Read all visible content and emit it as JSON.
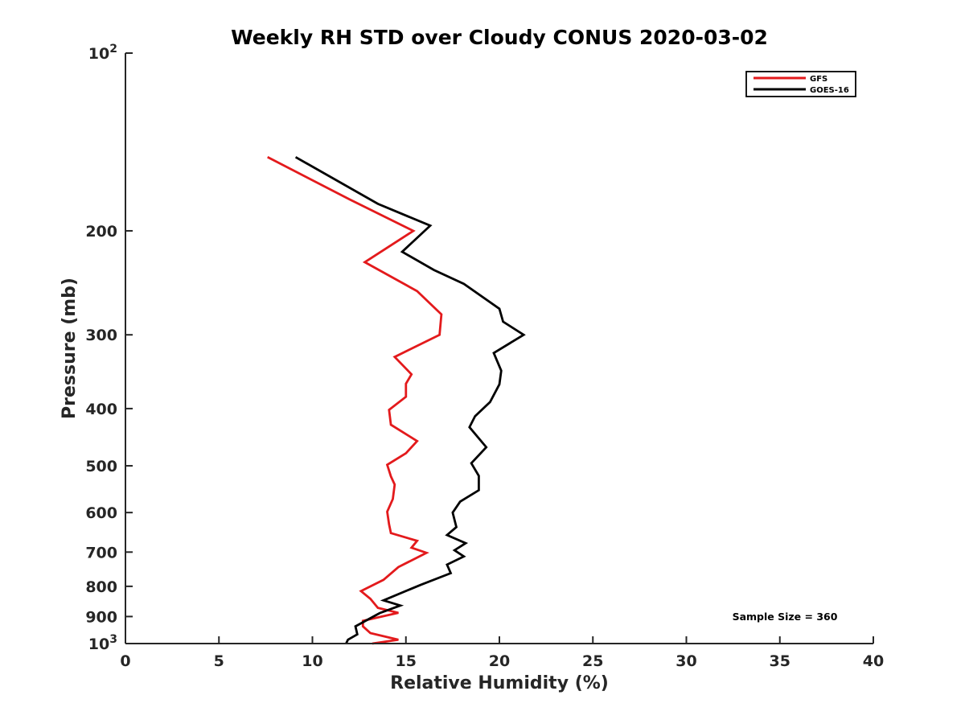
{
  "chart_data": {
    "type": "line",
    "title": "Weekly RH STD over Cloudy CONUS 2020-03-02",
    "xlabel": "Relative Humidity (%)",
    "ylabel": "Pressure (mb)",
    "xlim": [
      0,
      40
    ],
    "ylim": [
      100,
      1000
    ],
    "y_scale": "log",
    "y_reversed": true,
    "grid": false,
    "legend_position": "top-right",
    "x_ticks": [
      0,
      5,
      10,
      15,
      20,
      25,
      30,
      35,
      40
    ],
    "y_ticks": [
      {
        "value": 100,
        "base": "10",
        "exp": "2"
      },
      {
        "value": 200,
        "label": "200"
      },
      {
        "value": 300,
        "label": "300"
      },
      {
        "value": 400,
        "label": "400"
      },
      {
        "value": 500,
        "label": "500"
      },
      {
        "value": 600,
        "label": "600"
      },
      {
        "value": 700,
        "label": "700"
      },
      {
        "value": 800,
        "label": "800"
      },
      {
        "value": 900,
        "label": "900"
      },
      {
        "value": 1000,
        "base": "10",
        "exp": "3"
      }
    ],
    "annotation": "Sample Size = 360",
    "series": [
      {
        "name": "GFS",
        "color": "#e31a1c",
        "points": [
          {
            "x": 7.6,
            "y": 150
          },
          {
            "x": 12.0,
            "y": 177
          },
          {
            "x": 15.4,
            "y": 200
          },
          {
            "x": 12.8,
            "y": 226
          },
          {
            "x": 15.6,
            "y": 253
          },
          {
            "x": 16.9,
            "y": 277
          },
          {
            "x": 16.8,
            "y": 300
          },
          {
            "x": 14.4,
            "y": 327
          },
          {
            "x": 15.3,
            "y": 350
          },
          {
            "x": 15.0,
            "y": 363
          },
          {
            "x": 15.0,
            "y": 382
          },
          {
            "x": 14.1,
            "y": 402
          },
          {
            "x": 14.2,
            "y": 426
          },
          {
            "x": 15.6,
            "y": 454
          },
          {
            "x": 15.0,
            "y": 476
          },
          {
            "x": 14.0,
            "y": 498
          },
          {
            "x": 14.2,
            "y": 521
          },
          {
            "x": 14.4,
            "y": 538
          },
          {
            "x": 14.3,
            "y": 569
          },
          {
            "x": 14.0,
            "y": 598
          },
          {
            "x": 14.1,
            "y": 628
          },
          {
            "x": 14.2,
            "y": 650
          },
          {
            "x": 15.6,
            "y": 670
          },
          {
            "x": 15.3,
            "y": 688
          },
          {
            "x": 16.1,
            "y": 702
          },
          {
            "x": 14.6,
            "y": 742
          },
          {
            "x": 13.8,
            "y": 780
          },
          {
            "x": 12.6,
            "y": 815
          },
          {
            "x": 13.1,
            "y": 840
          },
          {
            "x": 13.5,
            "y": 870
          },
          {
            "x": 14.6,
            "y": 887
          },
          {
            "x": 12.7,
            "y": 915
          },
          {
            "x": 12.7,
            "y": 935
          },
          {
            "x": 13.1,
            "y": 960
          },
          {
            "x": 14.6,
            "y": 985
          },
          {
            "x": 13.2,
            "y": 1000
          }
        ]
      },
      {
        "name": "GOES-16",
        "color": "#000000",
        "points": [
          {
            "x": 9.1,
            "y": 150
          },
          {
            "x": 13.5,
            "y": 180
          },
          {
            "x": 16.3,
            "y": 196
          },
          {
            "x": 14.8,
            "y": 217
          },
          {
            "x": 16.5,
            "y": 233
          },
          {
            "x": 18.1,
            "y": 246
          },
          {
            "x": 20.0,
            "y": 271
          },
          {
            "x": 20.2,
            "y": 285
          },
          {
            "x": 21.3,
            "y": 300
          },
          {
            "x": 19.7,
            "y": 322
          },
          {
            "x": 20.1,
            "y": 345
          },
          {
            "x": 20.0,
            "y": 364
          },
          {
            "x": 19.5,
            "y": 390
          },
          {
            "x": 18.7,
            "y": 412
          },
          {
            "x": 18.4,
            "y": 430
          },
          {
            "x": 19.3,
            "y": 465
          },
          {
            "x": 18.5,
            "y": 495
          },
          {
            "x": 18.9,
            "y": 520
          },
          {
            "x": 18.9,
            "y": 550
          },
          {
            "x": 17.9,
            "y": 575
          },
          {
            "x": 17.5,
            "y": 600
          },
          {
            "x": 17.7,
            "y": 635
          },
          {
            "x": 17.2,
            "y": 655
          },
          {
            "x": 18.2,
            "y": 676
          },
          {
            "x": 17.6,
            "y": 695
          },
          {
            "x": 18.1,
            "y": 712
          },
          {
            "x": 17.2,
            "y": 735
          },
          {
            "x": 17.4,
            "y": 760
          },
          {
            "x": 15.8,
            "y": 795
          },
          {
            "x": 13.8,
            "y": 845
          },
          {
            "x": 14.7,
            "y": 862
          },
          {
            "x": 13.6,
            "y": 888
          },
          {
            "x": 12.3,
            "y": 935
          },
          {
            "x": 12.4,
            "y": 965
          },
          {
            "x": 11.9,
            "y": 985
          },
          {
            "x": 11.8,
            "y": 1000
          }
        ]
      }
    ]
  }
}
